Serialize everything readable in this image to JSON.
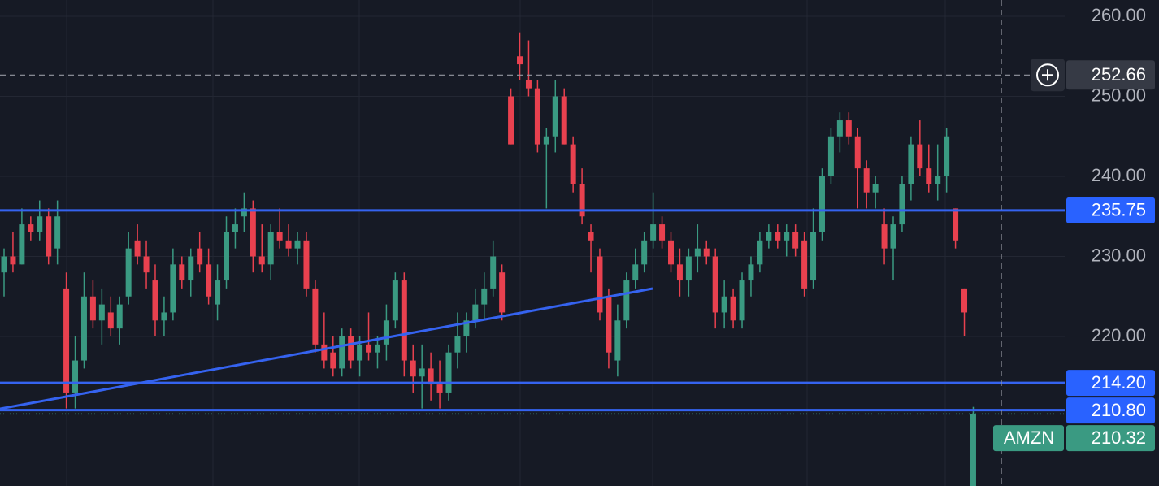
{
  "chart_data": {
    "type": "candlestick",
    "ylim": [
      201.32,
      262.03
    ],
    "yticks": [
      {
        "value": 260,
        "label": "260.00"
      },
      {
        "value": 250,
        "label": "250.00"
      },
      {
        "value": 240,
        "label": "240.00"
      },
      {
        "value": 230,
        "label": "230.00"
      },
      {
        "value": 220,
        "label": "220.00"
      }
    ],
    "grid": true,
    "up_color": "#3a9a82",
    "down_color": "#e8414f",
    "line_color": "#3563f0",
    "candles": [
      [
        228,
        231,
        225,
        230
      ],
      [
        230,
        233,
        228,
        229
      ],
      [
        229,
        236,
        229,
        234
      ],
      [
        234,
        235,
        232,
        233
      ],
      [
        233,
        237,
        232,
        235
      ],
      [
        235,
        236,
        229,
        230
      ],
      [
        231,
        237,
        229,
        235
      ],
      [
        226,
        228,
        211,
        213
      ],
      [
        213,
        220,
        211,
        217
      ],
      [
        217,
        228,
        216,
        225
      ],
      [
        225,
        227,
        221,
        222
      ],
      [
        222,
        226,
        219,
        224
      ],
      [
        223,
        225,
        220,
        221
      ],
      [
        221,
        225,
        219,
        224
      ],
      [
        225,
        233,
        224,
        231
      ],
      [
        232,
        234,
        229,
        230
      ],
      [
        230,
        232,
        226,
        228
      ],
      [
        227,
        229,
        220,
        222
      ],
      [
        222,
        225,
        220,
        223
      ],
      [
        223,
        231,
        222,
        229
      ],
      [
        229,
        230,
        226,
        227
      ],
      [
        227,
        231,
        225,
        230
      ],
      [
        231,
        233,
        228,
        229
      ],
      [
        229,
        231,
        224,
        225
      ],
      [
        224,
        229,
        222,
        227
      ],
      [
        227,
        235,
        226,
        233
      ],
      [
        233,
        236,
        231,
        234
      ],
      [
        235,
        238,
        233,
        236
      ],
      [
        236,
        237,
        228,
        230
      ],
      [
        230,
        234,
        228,
        229
      ],
      [
        229,
        234,
        227,
        233
      ],
      [
        233,
        236,
        231,
        232
      ],
      [
        232,
        234,
        230,
        231
      ],
      [
        231,
        233,
        229,
        232
      ],
      [
        232,
        233,
        225,
        226
      ],
      [
        226,
        227,
        218,
        219
      ],
      [
        219,
        223,
        216,
        217
      ],
      [
        218,
        220,
        215,
        216
      ],
      [
        216,
        221,
        215,
        220
      ],
      [
        220,
        221,
        216,
        217
      ],
      [
        217,
        220,
        215,
        219
      ],
      [
        219,
        223,
        217,
        218
      ],
      [
        218,
        220,
        216,
        219
      ],
      [
        219,
        224,
        217,
        222
      ],
      [
        222,
        228,
        221,
        227
      ],
      [
        227,
        228,
        215,
        217
      ],
      [
        217,
        219,
        213,
        215
      ],
      [
        215,
        219,
        211,
        216
      ],
      [
        216,
        218,
        212,
        214
      ],
      [
        214,
        217,
        211,
        213
      ],
      [
        213,
        219,
        212,
        218
      ],
      [
        218,
        223,
        216,
        220
      ],
      [
        220,
        223,
        218,
        222
      ],
      [
        222,
        226,
        221,
        224
      ],
      [
        224,
        228,
        222,
        226
      ],
      [
        226,
        232,
        225,
        230
      ],
      [
        228,
        229,
        222,
        223
      ],
      [
        250,
        251,
        244,
        244
      ],
      [
        255,
        258,
        252,
        254
      ],
      [
        252,
        257,
        250,
        251
      ],
      [
        251,
        252,
        243,
        244
      ],
      [
        244,
        246,
        236,
        245
      ],
      [
        245,
        252,
        243,
        250
      ],
      [
        250,
        251,
        244,
        244
      ],
      [
        244,
        245,
        238,
        239
      ],
      [
        239,
        241,
        234,
        235
      ],
      [
        233,
        234,
        228,
        232
      ],
      [
        230,
        231,
        222,
        223
      ],
      [
        225,
        226,
        216,
        218
      ],
      [
        217,
        224,
        215,
        222
      ],
      [
        222,
        228,
        221,
        227
      ],
      [
        227,
        231,
        226,
        229
      ],
      [
        229,
        233,
        228,
        232
      ],
      [
        232,
        238,
        231,
        234
      ],
      [
        234,
        235,
        231,
        232
      ],
      [
        232,
        233,
        228,
        229
      ],
      [
        229,
        231,
        225,
        227
      ],
      [
        227,
        231,
        225,
        230
      ],
      [
        230,
        234,
        228,
        231
      ],
      [
        231,
        232,
        229,
        230
      ],
      [
        230,
        231,
        221,
        223
      ],
      [
        223,
        227,
        221,
        225
      ],
      [
        225,
        226,
        221,
        222
      ],
      [
        222,
        228,
        221,
        227
      ],
      [
        227,
        230,
        225,
        229
      ],
      [
        229,
        233,
        228,
        232
      ],
      [
        232,
        234,
        231,
        233
      ],
      [
        233,
        234,
        231,
        232
      ],
      [
        232,
        234,
        230,
        233
      ],
      [
        233,
        234,
        230,
        231
      ],
      [
        232,
        233,
        225,
        226
      ],
      [
        227,
        236,
        226,
        233
      ],
      [
        233,
        241,
        232,
        240
      ],
      [
        240,
        246,
        239,
        245
      ],
      [
        245,
        248,
        243,
        247
      ],
      [
        247,
        248,
        244,
        245
      ],
      [
        245,
        246,
        236,
        241
      ],
      [
        241,
        242,
        236,
        238
      ],
      [
        238,
        240,
        236,
        239
      ],
      [
        234,
        236,
        229,
        231
      ],
      [
        231,
        235,
        227,
        234
      ],
      [
        234,
        240,
        233,
        239
      ],
      [
        239,
        245,
        237,
        244
      ],
      [
        244,
        247,
        240,
        241
      ],
      [
        241,
        244,
        238,
        239
      ],
      [
        239,
        244,
        237,
        240
      ],
      [
        240,
        246,
        238,
        245
      ],
      [
        236,
        236,
        231,
        232
      ],
      [
        226,
        226,
        220,
        223
      ],
      [
        201,
        211.2,
        201,
        210.32
      ]
    ],
    "levels": [
      235.75,
      {
        "value": 214.2,
        "label": "214.20"
      },
      {
        "value": 210.8,
        "label": "210.80"
      }
    ],
    "trendline": {
      "start": 210.96,
      "end": 225.99
    },
    "crosshair": 252.66,
    "symbol": "AMZN",
    "last_price": 210.32
  }
}
